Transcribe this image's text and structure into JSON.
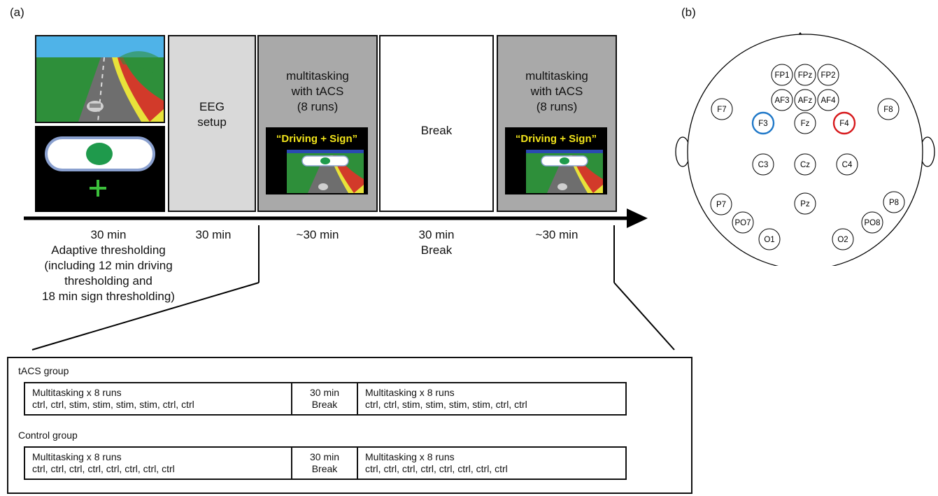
{
  "panel_a": {
    "label": "(a)",
    "phases": {
      "eeg_setup": [
        "EEG",
        "setup"
      ],
      "multitask1": [
        "multitasking",
        "with tACS",
        "(8 runs)"
      ],
      "break": [
        "Break"
      ],
      "multitask2": [
        "multitasking",
        "with tACS",
        "(8 runs)"
      ]
    },
    "stimulus_caption": "“Driving + Sign”",
    "durations": {
      "d1": [
        "30 min",
        "Adaptive thresholding",
        "(including 12 min driving",
        "thresholding and",
        "18 min sign thresholding)"
      ],
      "d2": [
        "30 min"
      ],
      "d3": [
        "~30 min"
      ],
      "d4": [
        "30 min",
        "Break"
      ],
      "d5": [
        "~30 min"
      ]
    },
    "groups": [
      {
        "name": "tACS group",
        "left_title": "Multitasking x 8 runs",
        "left_runs": "ctrl, ctrl, stim, stim, stim, stim, ctrl, ctrl",
        "middle": [
          "30 min",
          "Break"
        ],
        "right_title": "Multitasking x 8 runs",
        "right_runs": "ctrl, ctrl, stim, stim, stim, stim, ctrl, ctrl"
      },
      {
        "name": "Control group",
        "left_title": "Multitasking x 8 runs",
        "left_runs": "ctrl, ctrl, ctrl, ctrl, ctrl, ctrl, ctrl, ctrl",
        "middle": [
          "30 min",
          "Break"
        ],
        "right_title": "Multitasking x 8 runs",
        "right_runs": "ctrl, ctrl, ctrl, ctrl, ctrl, ctrl, ctrl, ctrl"
      }
    ],
    "colors": {
      "phase_gray": "#a9a9a9",
      "eeg_gray": "#d9d9d9",
      "sign_green": "#1f9a4c",
      "caption_yellow": "#f2e41b"
    }
  },
  "panel_b": {
    "label": "(b)",
    "electrodes": [
      "FP1",
      "FPz",
      "FP2",
      "AF3",
      "AFz",
      "AF4",
      "F7",
      "F3",
      "Fz",
      "F4",
      "F8",
      "C3",
      "Cz",
      "C4",
      "P7",
      "Pz",
      "P8",
      "PO7",
      "PO8",
      "O1",
      "O2"
    ],
    "highlight": {
      "F3": "#1f78c8",
      "F4": "#d7191c"
    }
  }
}
